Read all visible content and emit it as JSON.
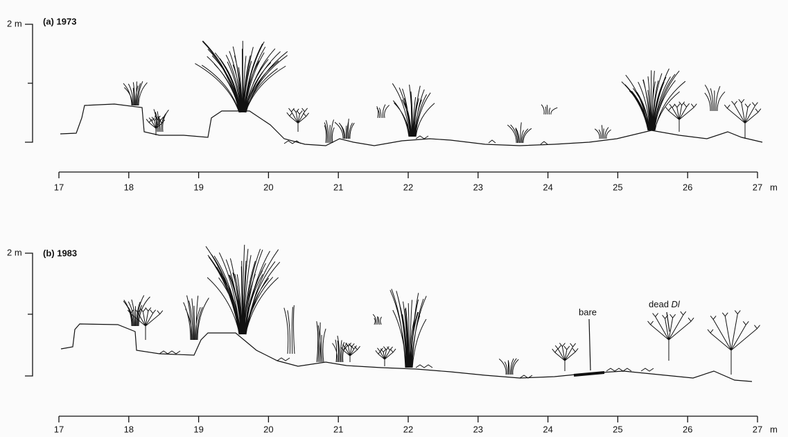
{
  "panels": [
    {
      "label": "(a) 1973",
      "y_label": "2 m",
      "x_ticks": [
        "17",
        "18",
        "19",
        "20",
        "21",
        "22",
        "23",
        "24",
        "25",
        "26",
        "27"
      ],
      "x_unit": "m"
    },
    {
      "label": "(b) 1983",
      "y_label": "2 m",
      "x_ticks": [
        "17",
        "18",
        "19",
        "20",
        "21",
        "22",
        "23",
        "24",
        "25",
        "26",
        "27"
      ],
      "x_unit": "m",
      "annotations": {
        "bare": "bare",
        "dead": "dead",
        "species": "Dl"
      }
    }
  ]
}
